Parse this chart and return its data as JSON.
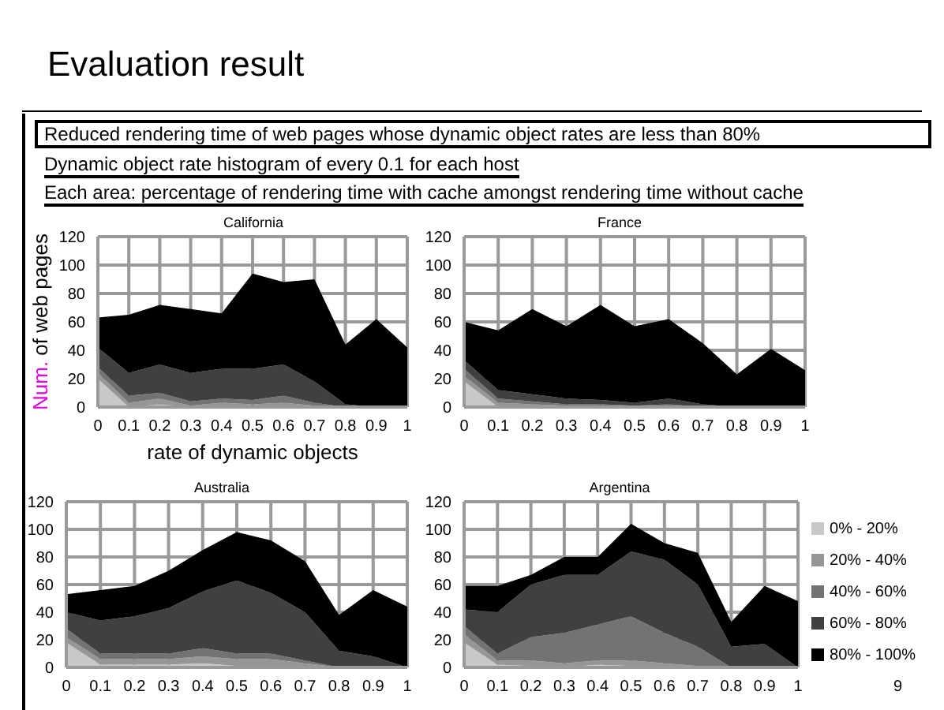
{
  "chart_data": [
    {
      "type": "area",
      "title": "California",
      "xlabel": "rate of dynamic objects",
      "ylabel": "Num. of web pages",
      "stacked": true,
      "grid": true,
      "legend": false,
      "annotations": [
        "Evaluation result",
        "Reduced rendering time of web pages whose dynamic object rates are less than 80%",
        "Dynamic object rate histogram of every 0.1 for each host",
        "Each area: percentage of rendering time with cache amongst rendering time without cache",
        "9"
      ],
      "x": [
        0,
        0.1,
        0.2,
        0.3,
        0.4,
        0.5,
        0.6,
        0.7,
        0.8,
        0.9,
        1
      ],
      "xlim": [
        0,
        1
      ],
      "xticks": [
        0,
        0.1,
        0.2,
        0.3,
        0.4,
        0.5,
        0.6,
        0.7,
        0.8,
        0.9,
        1
      ],
      "ylim": [
        0,
        120
      ],
      "yticks": [
        0,
        20,
        40,
        60,
        80,
        100,
        120
      ],
      "series": [
        {
          "color": "#c8c8c8",
          "values": [
            20,
            0,
            2,
            0,
            1,
            0,
            1,
            0,
            0,
            0,
            0
          ]
        },
        {
          "color": "#969696",
          "values": [
            4,
            3,
            4,
            1,
            2,
            2,
            2,
            1,
            0,
            0,
            0
          ]
        },
        {
          "color": "#737373",
          "values": [
            4,
            5,
            4,
            3,
            3,
            3,
            5,
            2,
            0,
            0,
            0
          ]
        },
        {
          "color": "#404040",
          "values": [
            14,
            16,
            20,
            20,
            21,
            22,
            22,
            15,
            2,
            0,
            0
          ]
        },
        {
          "color": "#000000",
          "values": [
            21,
            41,
            42,
            45,
            39,
            67,
            58,
            72,
            42,
            62,
            42
          ]
        }
      ]
    },
    {
      "type": "area",
      "title": "France",
      "stacked": true,
      "grid": true,
      "legend": false,
      "x": [
        0,
        0.1,
        0.2,
        0.3,
        0.4,
        0.5,
        0.6,
        0.7,
        0.8,
        0.9,
        1
      ],
      "xlim": [
        0,
        1
      ],
      "xticks": [
        0,
        0.1,
        0.2,
        0.3,
        0.4,
        0.5,
        0.6,
        0.7,
        0.8,
        0.9,
        1
      ],
      "ylim": [
        0,
        120
      ],
      "yticks": [
        0,
        20,
        40,
        60,
        80,
        100,
        120
      ],
      "series": [
        {
          "color": "#c8c8c8",
          "values": [
            18,
            0,
            0,
            0,
            0,
            0,
            0,
            0,
            0,
            0,
            0
          ]
        },
        {
          "color": "#969696",
          "values": [
            4,
            3,
            2,
            1,
            1,
            0,
            1,
            0,
            0,
            0,
            0
          ]
        },
        {
          "color": "#737373",
          "values": [
            5,
            3,
            2,
            1,
            1,
            1,
            1,
            0,
            0,
            0,
            0
          ]
        },
        {
          "color": "#404040",
          "values": [
            6,
            6,
            5,
            4,
            3,
            2,
            4,
            2,
            0,
            0,
            0
          ]
        },
        {
          "color": "#000000",
          "values": [
            27,
            42,
            60,
            51,
            67,
            54,
            56,
            43,
            23,
            41,
            26
          ]
        }
      ]
    },
    {
      "type": "area",
      "title": "Australia",
      "stacked": true,
      "grid": true,
      "legend": false,
      "x": [
        0,
        0.1,
        0.2,
        0.3,
        0.4,
        0.5,
        0.6,
        0.7,
        0.8,
        0.9,
        1
      ],
      "xlim": [
        0,
        1
      ],
      "xticks": [
        0,
        0.1,
        0.2,
        0.3,
        0.4,
        0.5,
        0.6,
        0.7,
        0.8,
        0.9,
        1
      ],
      "ylim": [
        0,
        120
      ],
      "yticks": [
        0,
        20,
        40,
        60,
        80,
        100,
        120
      ],
      "series": [
        {
          "color": "#c8c8c8",
          "values": [
            18,
            2,
            2,
            2,
            3,
            1,
            1,
            0,
            0,
            0,
            0
          ]
        },
        {
          "color": "#969696",
          "values": [
            4,
            4,
            4,
            4,
            5,
            5,
            5,
            3,
            0,
            0,
            0
          ]
        },
        {
          "color": "#737373",
          "values": [
            6,
            4,
            4,
            4,
            6,
            4,
            4,
            2,
            0,
            0,
            0
          ]
        },
        {
          "color": "#404040",
          "values": [
            12,
            24,
            27,
            33,
            41,
            53,
            44,
            35,
            12,
            8,
            0
          ]
        },
        {
          "color": "#000000",
          "values": [
            13,
            22,
            22,
            27,
            30,
            35,
            38,
            37,
            26,
            48,
            44
          ]
        }
      ]
    },
    {
      "type": "area",
      "title": "Argentina",
      "stacked": true,
      "grid": true,
      "legend": "right",
      "x": [
        0,
        0.1,
        0.2,
        0.3,
        0.4,
        0.5,
        0.6,
        0.7,
        0.8,
        0.9,
        1
      ],
      "xlim": [
        0,
        1
      ],
      "xticks": [
        0,
        0.1,
        0.2,
        0.3,
        0.4,
        0.5,
        0.6,
        0.7,
        0.8,
        0.9,
        1
      ],
      "ylim": [
        0,
        120
      ],
      "yticks": [
        0,
        20,
        40,
        60,
        80,
        100,
        120
      ],
      "series": [
        {
          "name": "0% - 20%",
          "color": "#c8c8c8",
          "values": [
            18,
            2,
            1,
            0,
            2,
            1,
            0,
            0,
            0,
            0,
            0
          ]
        },
        {
          "name": "20% - 40%",
          "color": "#969696",
          "values": [
            6,
            3,
            4,
            3,
            3,
            4,
            3,
            1,
            0,
            0,
            0
          ]
        },
        {
          "name": "40% - 60%",
          "color": "#737373",
          "values": [
            6,
            5,
            17,
            22,
            26,
            32,
            22,
            14,
            0,
            0,
            0
          ]
        },
        {
          "name": "60% - 80%",
          "color": "#404040",
          "values": [
            12,
            30,
            38,
            42,
            36,
            47,
            53,
            45,
            15,
            17,
            0
          ]
        },
        {
          "name": "80% - 100%",
          "color": "#000000",
          "values": [
            17,
            19,
            7,
            13,
            13,
            20,
            12,
            23,
            18,
            42,
            48
          ]
        }
      ]
    }
  ]
}
